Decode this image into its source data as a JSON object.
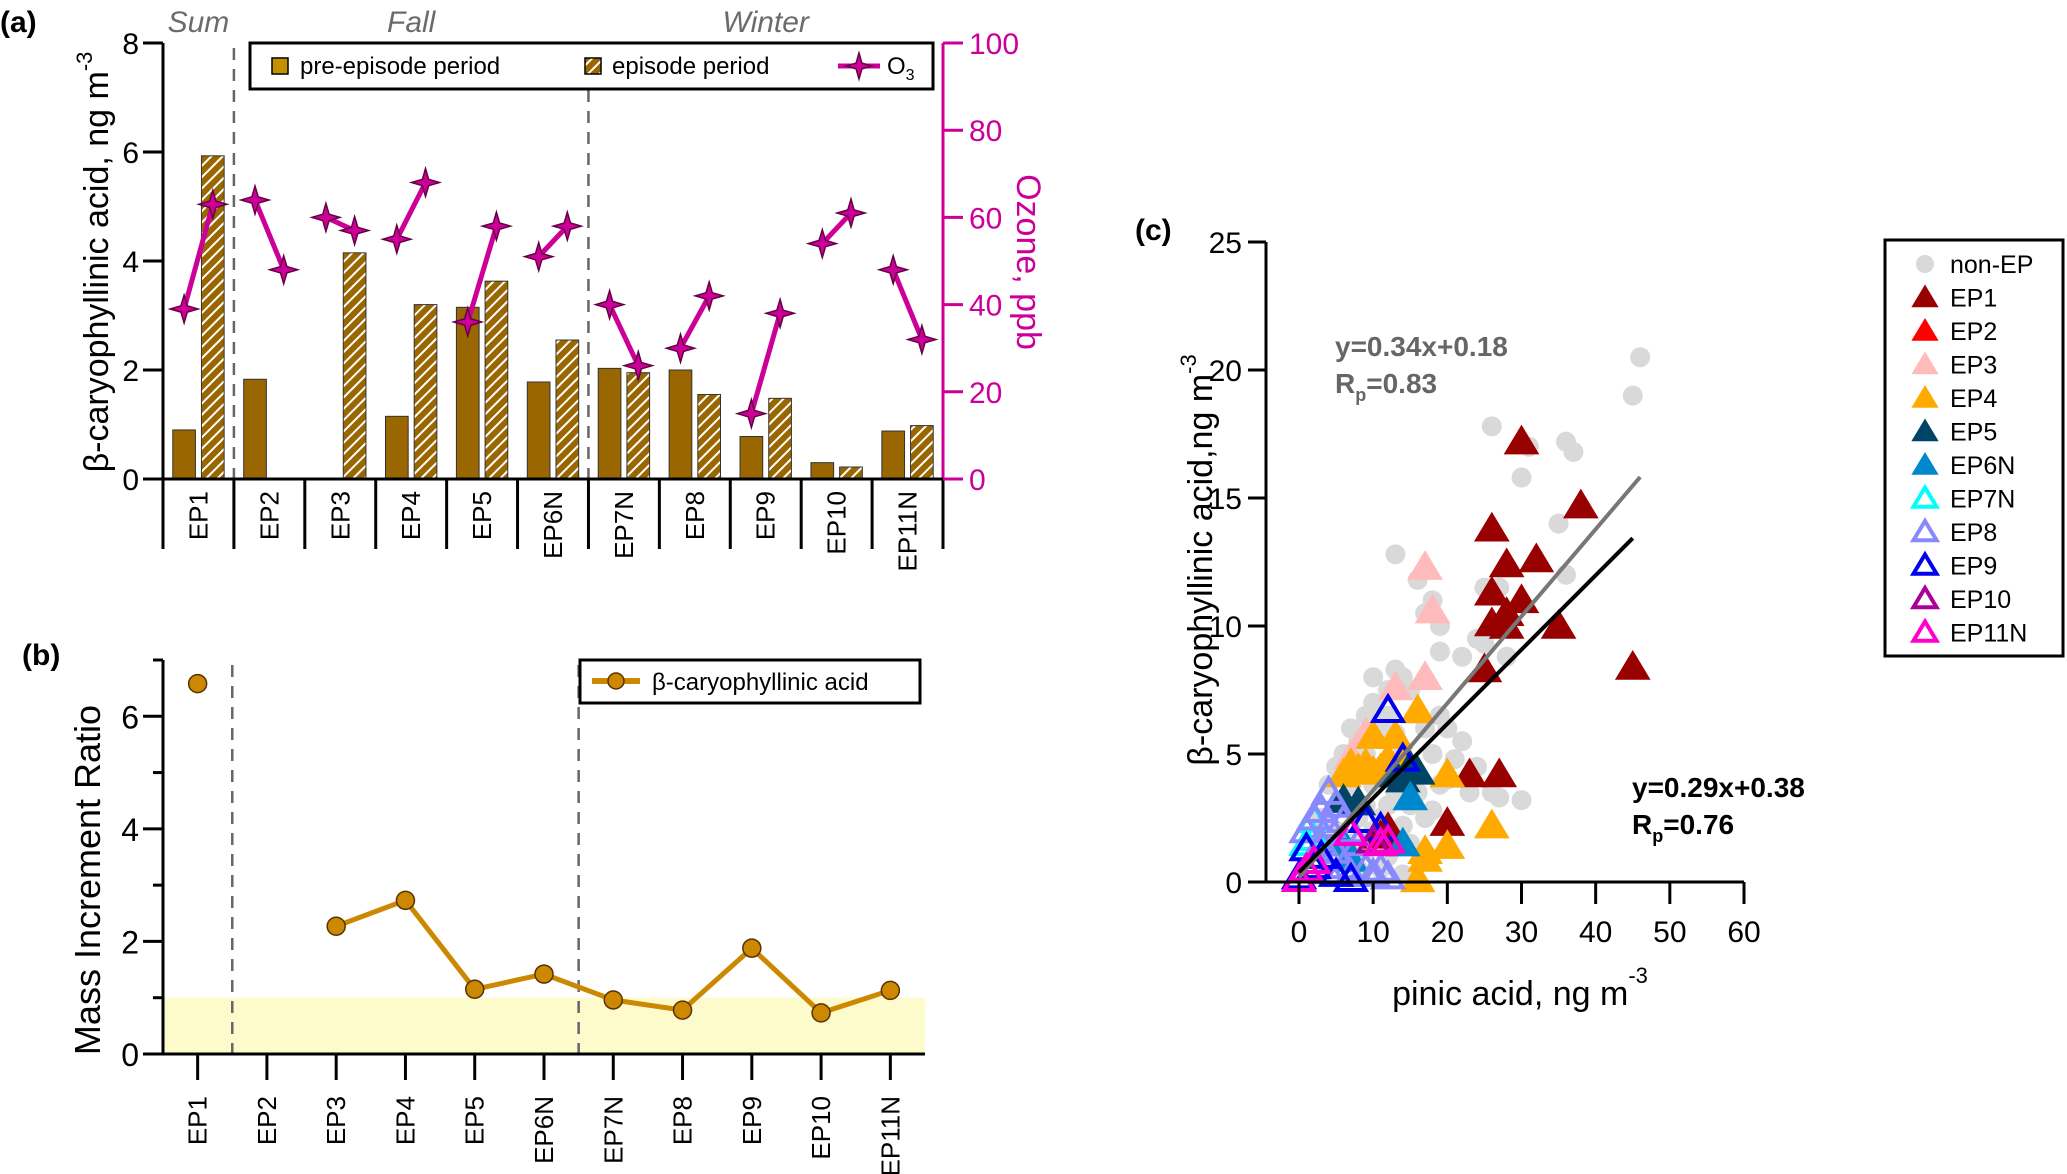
{
  "panels": {
    "a_label": "(a)",
    "b_label": "(b)",
    "c_label": "(c)"
  },
  "chart_data": [
    {
      "id": "a",
      "type": "bar",
      "title": "",
      "seasons": [
        {
          "label": "Sum",
          "from": "EP1",
          "to": "EP1"
        },
        {
          "label": "Fall",
          "from": "EP2",
          "to": "EP6N"
        },
        {
          "label": "Winter",
          "from": "EP7N",
          "to": "EP11N"
        }
      ],
      "season_dividers_after": [
        "EP1",
        "EP6N"
      ],
      "categories": [
        "EP1",
        "EP2",
        "EP3",
        "EP4",
        "EP5",
        "EP6N",
        "EP7N",
        "EP8",
        "EP9",
        "EP10",
        "EP11N"
      ],
      "series": [
        {
          "name": "pre-episode period",
          "axis": "left",
          "style": "solid",
          "color": "#996600",
          "values": [
            0.9,
            1.83,
            null,
            1.15,
            3.15,
            1.78,
            2.03,
            2.0,
            0.78,
            0.3,
            0.88
          ]
        },
        {
          "name": "episode period",
          "axis": "left",
          "style": "hatched",
          "color": "#996600",
          "values": [
            5.93,
            null,
            4.15,
            3.2,
            3.63,
            2.55,
            1.95,
            1.55,
            1.48,
            0.22,
            0.98
          ]
        },
        {
          "name": "O3",
          "axis": "right",
          "style": "line-star",
          "color": "#cc0099",
          "pre": [
            39,
            64,
            60,
            55,
            36,
            51,
            40,
            30,
            15,
            54,
            48
          ],
          "episode": [
            63,
            48,
            57,
            68,
            58,
            58,
            26,
            42,
            38,
            61,
            32
          ]
        }
      ],
      "ylabel": "β-caryophyllinic acid, ng m",
      "ylabel_sup": "-3",
      "ylim": [
        0,
        8
      ],
      "yticks": [
        0,
        2,
        4,
        6,
        8
      ],
      "y2label": "Ozone, ppb",
      "y2lim": [
        0,
        100
      ],
      "y2ticks": [
        0,
        20,
        40,
        60,
        80,
        100
      ],
      "legend": {
        "placement": "top",
        "entries": [
          "pre-episode period",
          "episode  period",
          "O"
        ],
        "o3_sub": "3"
      }
    },
    {
      "id": "b",
      "type": "line",
      "categories": [
        "EP1",
        "EP2",
        "EP3",
        "EP4",
        "EP5",
        "EP6N",
        "EP7N",
        "EP8",
        "EP9",
        "EP10",
        "EP11N"
      ],
      "series": [
        {
          "name": "β-caryophyllinic acid",
          "color": "#cc8800",
          "values": [
            6.58,
            null,
            2.27,
            2.73,
            1.15,
            1.42,
            0.96,
            0.78,
            1.88,
            0.73,
            1.13
          ]
        }
      ],
      "ylabel": "Mass Increment Ratio",
      "ylim": [
        0,
        7
      ],
      "yticks": [
        0,
        2,
        4,
        6
      ],
      "shaded_band": {
        "from": 0,
        "to": 1,
        "color": "#fdfbcc"
      },
      "season_dividers_after": [
        "EP1",
        "EP6N"
      ],
      "legend": {
        "placement": "top-right",
        "entries": [
          "β-caryophyllinic acid"
        ]
      }
    },
    {
      "id": "c",
      "type": "scatter",
      "xlabel": "pinic acid, ng m",
      "xlabel_sup": "-3",
      "ylabel": "β-caryophyllinic acid,ng m",
      "ylabel_sup": "-3",
      "xlim": [
        0,
        60
      ],
      "ylim": [
        0,
        25
      ],
      "xticks": [
        0,
        10,
        20,
        30,
        40,
        50,
        60
      ],
      "yticks": [
        0,
        5,
        10,
        15,
        20,
        25
      ],
      "fits": [
        {
          "label": "y=0.34x+0.18",
          "r_label": "R",
          "r_sub": "p",
          "r_value": "=0.83",
          "slope": 0.34,
          "intercept": 0.18,
          "x_range": [
            0,
            46
          ],
          "color": "#777777"
        },
        {
          "label": "y=0.29x+0.38",
          "r_label": "R",
          "r_sub": "p",
          "r_value": "=0.76",
          "slope": 0.29,
          "intercept": 0.38,
          "x_range": [
            0,
            45
          ],
          "color": "#000000"
        }
      ],
      "legend": {
        "placement": "right",
        "entries": [
          {
            "name": "non-EP",
            "marker": "circle",
            "color": "#d9d9d9",
            "filled": true
          },
          {
            "name": "EP1",
            "marker": "triangle",
            "color": "#990000",
            "filled": true
          },
          {
            "name": "EP2",
            "marker": "triangle",
            "color": "#ff0000",
            "filled": true
          },
          {
            "name": "EP3",
            "marker": "triangle",
            "color": "#ffbbbb",
            "filled": true
          },
          {
            "name": "EP4",
            "marker": "triangle",
            "color": "#ffaa00",
            "filled": true
          },
          {
            "name": "EP5",
            "marker": "triangle",
            "color": "#004466",
            "filled": true
          },
          {
            "name": "EP6N",
            "marker": "triangle",
            "color": "#0088cc",
            "filled": true
          },
          {
            "name": "EP7N",
            "marker": "triangle",
            "color": "#00ffff",
            "filled": false
          },
          {
            "name": "EP8",
            "marker": "triangle",
            "color": "#8888ff",
            "filled": false
          },
          {
            "name": "EP9",
            "marker": "triangle",
            "color": "#0000ee",
            "filled": false
          },
          {
            "name": "EP10",
            "marker": "triangle",
            "color": "#aa0099",
            "filled": false
          },
          {
            "name": "EP11N",
            "marker": "triangle",
            "color": "#ff00cc",
            "filled": false
          }
        ]
      },
      "points": {
        "non-EP": [
          [
            46,
            20.5
          ],
          [
            45,
            19
          ],
          [
            26,
            17.8
          ],
          [
            31,
            17
          ],
          [
            36,
            17.2
          ],
          [
            37,
            16.8
          ],
          [
            30,
            15.8
          ],
          [
            35,
            14
          ],
          [
            13,
            12.8
          ],
          [
            16,
            11.8
          ],
          [
            36,
            12
          ],
          [
            25,
            11.5
          ],
          [
            27,
            11.5
          ],
          [
            18,
            11
          ],
          [
            17,
            10.5
          ],
          [
            19,
            10
          ],
          [
            24,
            9.5
          ],
          [
            25,
            9.3
          ],
          [
            19,
            9
          ],
          [
            22,
            8.8
          ],
          [
            28,
            8.8
          ],
          [
            13,
            8.3
          ],
          [
            10,
            8
          ],
          [
            14,
            8
          ],
          [
            12,
            7.5
          ],
          [
            10,
            7
          ],
          [
            15,
            7.5
          ],
          [
            9,
            6.5
          ],
          [
            12,
            6.5
          ],
          [
            7,
            6
          ],
          [
            8,
            5.5
          ],
          [
            11,
            6
          ],
          [
            13,
            5.8
          ],
          [
            17,
            6
          ],
          [
            19,
            6.5
          ],
          [
            20,
            6
          ],
          [
            22,
            5.5
          ],
          [
            6,
            5
          ],
          [
            9,
            5
          ],
          [
            14,
            5
          ],
          [
            18,
            5
          ],
          [
            21,
            4.8
          ],
          [
            24,
            4.5
          ],
          [
            5,
            4.5
          ],
          [
            8,
            4.2
          ],
          [
            11,
            4.5
          ],
          [
            16,
            4.2
          ],
          [
            20,
            4
          ],
          [
            26,
            3.5
          ],
          [
            27,
            3.3
          ],
          [
            30,
            3.2
          ],
          [
            4,
            3.8
          ],
          [
            7,
            3.8
          ],
          [
            10,
            3.8
          ],
          [
            13,
            3.5
          ],
          [
            16,
            3.5
          ],
          [
            19,
            3.8
          ],
          [
            23,
            3.5
          ],
          [
            6,
            3
          ],
          [
            9,
            3
          ],
          [
            12,
            3
          ],
          [
            15,
            3
          ],
          [
            18,
            2.8
          ],
          [
            3,
            2.5
          ],
          [
            8,
            2.5
          ],
          [
            11,
            2.5
          ],
          [
            14,
            2.2
          ],
          [
            17,
            2.5
          ],
          [
            5,
            2
          ],
          [
            10,
            2
          ],
          [
            13,
            1.8
          ],
          [
            4,
            1.5
          ],
          [
            7,
            1.5
          ],
          [
            15,
            1.5
          ],
          [
            9,
            1.2
          ],
          [
            12,
            1
          ],
          [
            6,
            0.8
          ],
          [
            11,
            0.5
          ],
          [
            14,
            0.3
          ],
          [
            8,
            0.5
          ],
          [
            3,
            0.3
          ]
        ],
        "EP1": [
          [
            30,
            17.2
          ],
          [
            38,
            14.7
          ],
          [
            26,
            13.8
          ],
          [
            28,
            12.4
          ],
          [
            32,
            12.6
          ],
          [
            26,
            11.3
          ],
          [
            28,
            10.5
          ],
          [
            26,
            10.1
          ],
          [
            30,
            11
          ],
          [
            35,
            10
          ],
          [
            28,
            10
          ],
          [
            25,
            8.3
          ],
          [
            45,
            8.4
          ],
          [
            23,
            4.2
          ],
          [
            27,
            4.2
          ],
          [
            20,
            2.3
          ],
          [
            12,
            2.1
          ],
          [
            11,
            1.8
          ]
        ],
        "EP3": [
          [
            17,
            12.3
          ],
          [
            18,
            10.6
          ],
          [
            17,
            8
          ],
          [
            13,
            7.6
          ],
          [
            9,
            5.8
          ],
          [
            7,
            4.9
          ],
          [
            8,
            4.3
          ]
        ],
        "EP4": [
          [
            16,
            6.7
          ],
          [
            13,
            5.7
          ],
          [
            10,
            5.7
          ],
          [
            7,
            4.6
          ],
          [
            9,
            4.6
          ],
          [
            12,
            4.8
          ],
          [
            6,
            4.2
          ],
          [
            8,
            4.4
          ],
          [
            10,
            4.3
          ],
          [
            11,
            4.4
          ],
          [
            14,
            4.6
          ],
          [
            20,
            4.2
          ],
          [
            26,
            2.2
          ],
          [
            20,
            1.4
          ],
          [
            17,
            1.2
          ],
          [
            17,
            0.9
          ],
          [
            16,
            0.1
          ]
        ],
        "EP5": [
          [
            6,
            3.2
          ],
          [
            8,
            3.1
          ],
          [
            13,
            4.2
          ],
          [
            16,
            4.3
          ],
          [
            15,
            4.5
          ],
          [
            14,
            4
          ]
        ],
        "EP6N": [
          [
            15,
            3.3
          ],
          [
            14,
            1.5
          ],
          [
            7,
            0.9
          ],
          [
            6,
            1.5
          ]
        ],
        "EP7N": [
          [
            2,
            2.4
          ],
          [
            2,
            1.7
          ],
          [
            1,
            1.5
          ]
        ],
        "EP8": [
          [
            4,
            3.5
          ],
          [
            5,
            3
          ],
          [
            3,
            2.8
          ],
          [
            2,
            2.5
          ],
          [
            6,
            2.4
          ],
          [
            4,
            2.2
          ],
          [
            7,
            2
          ],
          [
            1,
            2
          ],
          [
            3,
            1.5
          ],
          [
            5,
            1.2
          ],
          [
            8,
            1.5
          ],
          [
            2,
            0.8
          ],
          [
            6,
            0.6
          ],
          [
            9,
            0.5
          ],
          [
            1,
            0.5
          ],
          [
            4,
            0.4
          ],
          [
            7,
            0.3
          ],
          [
            10,
            0.3
          ],
          [
            11,
            0.5
          ],
          [
            12,
            0.2
          ]
        ],
        "EP9": [
          [
            12,
            6.7
          ],
          [
            14,
            4.8
          ],
          [
            9,
            2.4
          ],
          [
            11,
            2.1
          ],
          [
            1,
            1.3
          ],
          [
            3,
            1
          ],
          [
            2,
            0.6
          ],
          [
            5,
            0.3
          ],
          [
            7,
            0.1
          ],
          [
            0,
            0.2
          ]
        ],
        "EP10": [
          [
            7,
            1.9
          ],
          [
            10,
            1.6
          ]
        ],
        "EP11N": [
          [
            7,
            1.9
          ],
          [
            11,
            1.5
          ],
          [
            12,
            1.6
          ],
          [
            2,
            0.8
          ],
          [
            1,
            0.5
          ],
          [
            0,
            0.1
          ]
        ]
      }
    }
  ]
}
